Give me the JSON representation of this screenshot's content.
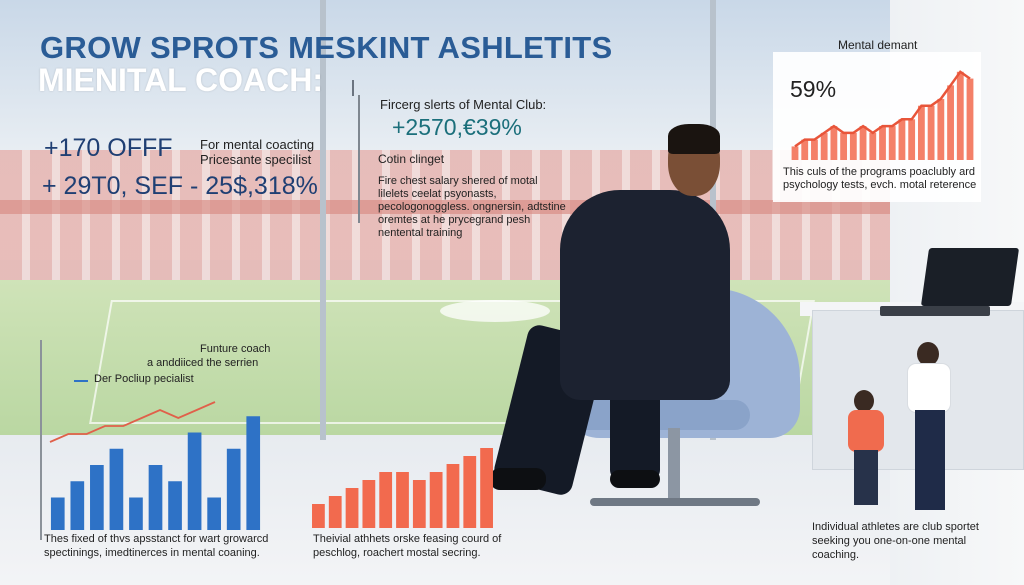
{
  "title_line_1": "GROW SPROTS MESKINT ASHLETITS",
  "title_line_2": "MIENITAL COACH:",
  "stats": {
    "stat_a": "+170 OFFF",
    "stat_a_note_1": "For mental coacting",
    "stat_a_note_2": "Pricesante specilist",
    "stat_b": "+ 29T0, SEF - 25$,318%"
  },
  "middle": {
    "note_1": "Fircerg slerts of Mental Club:",
    "stat": "+2570,€39%",
    "note_2": "Cotin clinget",
    "paragraph": "Fire chest salary shered of motal lilelets ceelat psyonasts, pecologonoggless. ongnersin, adtstine oremtes at he prycegrand pesh nentental training"
  },
  "chart_top_right": {
    "title": "Mental demant",
    "percent": "59%",
    "caption": "This culs of the programs poaclubly ard psychology tests, evch. motal reterence"
  },
  "chart_bottom_left": {
    "note_1": "Funture coach",
    "note_2": "a anddiiced the serrien",
    "legend": "Der Pocliup pecialist",
    "caption": "Thes fixed of thvs apsstanct for wart growarcd spectinings, imedtinerces in mental coaning."
  },
  "chart_bottom_middle": {
    "caption": "Theivial athhets orske feasing courd of peschlog, roachert mostal secring."
  },
  "caption_bottom_right": "Individual athletes are club sportet seeking you one-on-one mental coaching.",
  "colors": {
    "accent_blue": "#2e72c6",
    "accent_coral": "#f26a4e",
    "title_blue": "#2a5c96"
  },
  "chart_data": [
    {
      "type": "area",
      "series": [
        {
          "values": [
            2,
            3,
            3,
            4,
            5,
            4,
            4,
            5,
            4,
            5,
            5,
            6,
            6,
            8,
            8,
            9,
            11,
            13,
            12
          ]
        }
      ]
    },
    {
      "type": "bar",
      "series": [
        {
          "values": [
            2,
            3,
            4,
            5,
            2,
            4,
            3,
            6,
            2,
            5,
            7
          ]
        },
        {
          "values": [
            1,
            2,
            2,
            3,
            3,
            4,
            5,
            4,
            5,
            6
          ]
        }
      ]
    },
    {
      "type": "bar",
      "series": [
        {
          "values": [
            3,
            4,
            5,
            6,
            7,
            7,
            6,
            7,
            8,
            9,
            10
          ]
        }
      ]
    }
  ]
}
